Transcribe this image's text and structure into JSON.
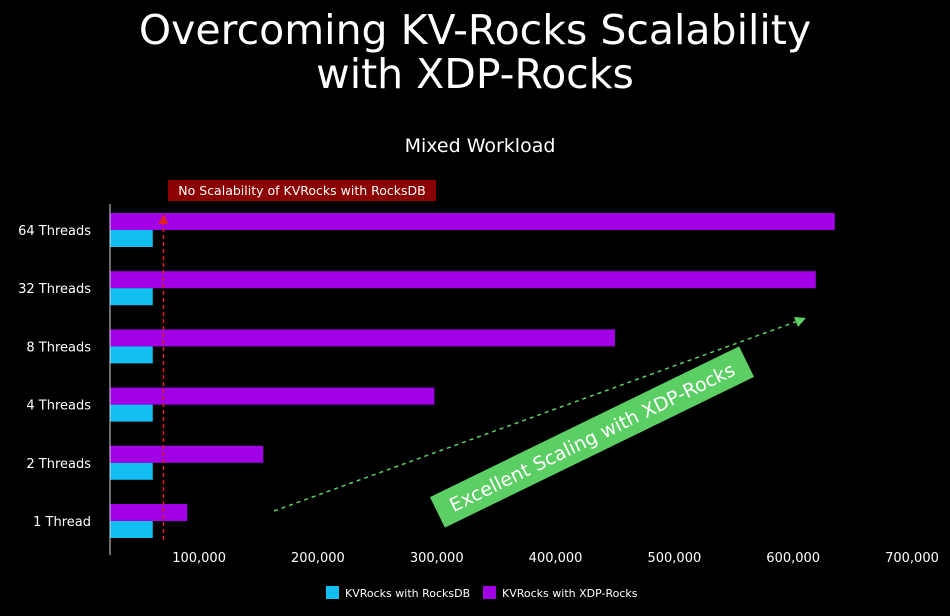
{
  "slide": {
    "title_line1": "Overcoming KV-Rocks Scalability",
    "title_line2": "with XDP-Rocks"
  },
  "chart_data": {
    "type": "bar",
    "orientation": "horizontal",
    "title": "Mixed Workload",
    "categories": [
      "64 Threads",
      "32 Threads",
      "8 Threads",
      "4 Threads",
      "2 Threads",
      "1 Thread"
    ],
    "series": [
      {
        "name": "KVRocks with XDP-Rocks",
        "color": "#a100e6",
        "values": [
          635000,
          619000,
          450000,
          298000,
          154000,
          90000
        ]
      },
      {
        "name": "KVRocks with RocksDB",
        "color": "#13bff2",
        "values": [
          61000,
          61000,
          61000,
          61000,
          61000,
          61000
        ]
      }
    ],
    "xlim": [
      25000,
      700000
    ],
    "xticks": [
      100000,
      200000,
      300000,
      400000,
      500000,
      600000,
      700000
    ],
    "xtick_labels": [
      "100,000",
      "200,000",
      "300,000",
      "400,000",
      "500,000",
      "600,000",
      "700,000"
    ],
    "legend": "bottom",
    "grid": false,
    "annotations": [
      {
        "text": "No Scalability of KVRocks with RocksDB",
        "color": "#8b0000",
        "line_color": "#e02020",
        "at_value": 70000
      },
      {
        "text": "Excellent Scaling with XDP-Rocks",
        "color": "#5ccf64",
        "arrow_color": "#5ccf64"
      }
    ]
  }
}
